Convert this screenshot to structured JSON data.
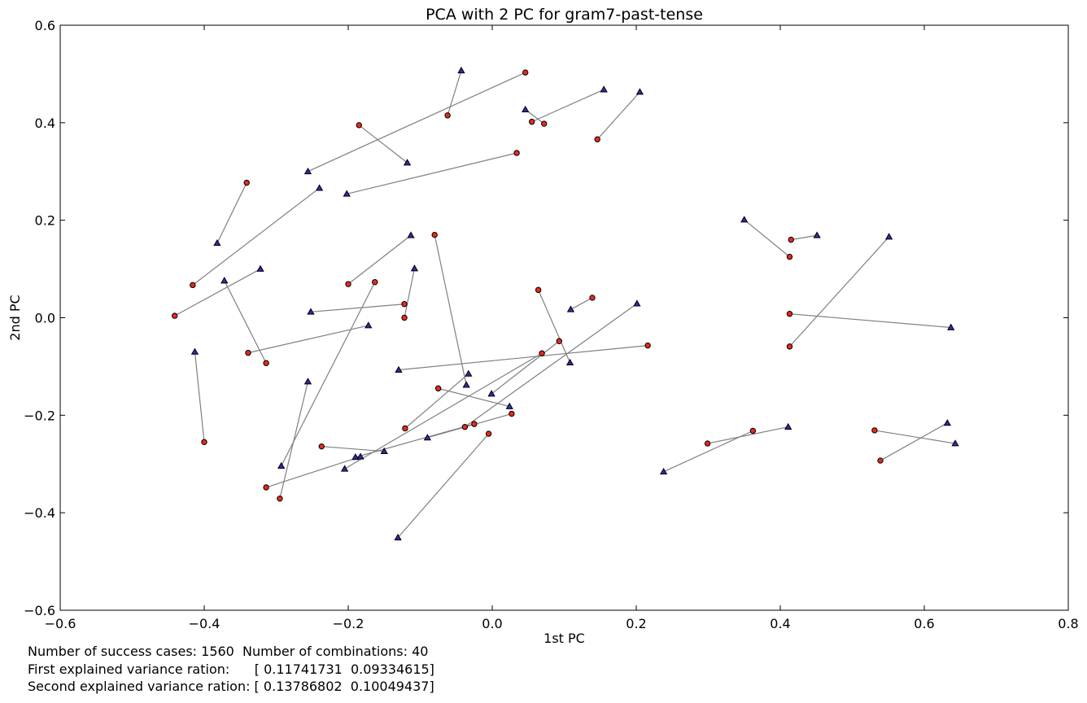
{
  "chart_data": {
    "type": "scatter",
    "title": "PCA with 2 PC for gram7-past-tense",
    "xlabel": "1st PC",
    "ylabel": "2nd PC",
    "xlim": [
      -0.6,
      0.8
    ],
    "ylim": [
      -0.6,
      0.6
    ],
    "xticks": [
      -0.6,
      -0.4,
      -0.2,
      0.0,
      0.2,
      0.4,
      0.6,
      0.8
    ],
    "yticks": [
      -0.6,
      -0.4,
      -0.2,
      0.0,
      0.2,
      0.4,
      0.6
    ],
    "xtick_labels": [
      "−0.6",
      "−0.4",
      "−0.2",
      "0.0",
      "0.2",
      "0.4",
      "0.6",
      "0.8"
    ],
    "ytick_labels": [
      "−0.6",
      "−0.4",
      "−0.2",
      "0.0",
      "0.2",
      "0.4",
      "0.6"
    ],
    "grid": false,
    "colors": {
      "circle": "#e8291c",
      "triangle": "#2d2bb0",
      "line": "#808080"
    },
    "pairs": [
      {
        "circle": [
          0.046,
          0.503
        ],
        "triangle": [
          -0.256,
          0.3
        ]
      },
      {
        "circle": [
          -0.062,
          0.415
        ],
        "triangle": [
          -0.043,
          0.507
        ]
      },
      {
        "circle": [
          -0.185,
          0.395
        ],
        "triangle": [
          -0.118,
          0.318
        ]
      },
      {
        "circle": [
          0.055,
          0.402
        ],
        "triangle": [
          0.155,
          0.468
        ]
      },
      {
        "circle": [
          0.072,
          0.398
        ],
        "triangle": [
          0.046,
          0.427
        ]
      },
      {
        "circle": [
          0.146,
          0.366
        ],
        "triangle": [
          0.205,
          0.463
        ]
      },
      {
        "circle": [
          0.034,
          0.338
        ],
        "triangle": [
          -0.202,
          0.254
        ]
      },
      {
        "circle": [
          -0.341,
          0.277
        ],
        "triangle": [
          -0.382,
          0.153
        ]
      },
      {
        "circle": [
          -0.416,
          0.067
        ],
        "triangle": [
          -0.24,
          0.266
        ]
      },
      {
        "circle": [
          -0.2,
          0.069
        ],
        "triangle": [
          -0.113,
          0.169
        ]
      },
      {
        "circle": [
          -0.08,
          0.17
        ],
        "triangle": [
          -0.036,
          -0.138
        ]
      },
      {
        "circle": [
          -0.441,
          0.004
        ],
        "triangle": [
          -0.322,
          0.1
        ]
      },
      {
        "circle": [
          -0.314,
          -0.093
        ],
        "triangle": [
          -0.372,
          0.076
        ]
      },
      {
        "circle": [
          -0.163,
          0.073
        ],
        "triangle": [
          -0.293,
          -0.304
        ]
      },
      {
        "circle": [
          -0.122,
          0.028
        ],
        "triangle": [
          -0.252,
          0.012
        ]
      },
      {
        "circle": [
          -0.122,
          0.0
        ],
        "triangle": [
          -0.108,
          0.101
        ]
      },
      {
        "circle": [
          -0.339,
          -0.072
        ],
        "triangle": [
          -0.172,
          -0.016
        ]
      },
      {
        "circle": [
          0.064,
          0.057
        ],
        "triangle": [
          0.108,
          -0.092
        ]
      },
      {
        "circle": [
          0.139,
          0.041
        ],
        "triangle": [
          0.109,
          0.017
        ]
      },
      {
        "circle": [
          0.216,
          -0.057
        ],
        "triangle": [
          -0.13,
          -0.107
        ]
      },
      {
        "circle": [
          0.093,
          -0.048
        ],
        "triangle": [
          -0.001,
          -0.156
        ]
      },
      {
        "circle": [
          0.069,
          -0.073
        ],
        "triangle": [
          -0.205,
          -0.31
        ]
      },
      {
        "circle": [
          -0.4,
          -0.255
        ],
        "triangle": [
          -0.413,
          -0.07
        ]
      },
      {
        "circle": [
          -0.295,
          -0.371
        ],
        "triangle": [
          -0.256,
          -0.131
        ]
      },
      {
        "circle": [
          -0.075,
          -0.145
        ],
        "triangle": [
          0.024,
          -0.182
        ]
      },
      {
        "circle": [
          -0.121,
          -0.227
        ],
        "triangle": [
          -0.033,
          -0.115
        ]
      },
      {
        "circle": [
          -0.038,
          -0.224
        ],
        "triangle": [
          0.201,
          0.029
        ]
      },
      {
        "circle": [
          -0.025,
          -0.218
        ],
        "triangle": [
          -0.19,
          -0.286
        ]
      },
      {
        "circle": [
          0.027,
          -0.197
        ],
        "triangle": [
          -0.09,
          -0.246
        ]
      },
      {
        "circle": [
          -0.237,
          -0.264
        ],
        "triangle": [
          -0.15,
          -0.274
        ]
      },
      {
        "circle": [
          -0.314,
          -0.348
        ],
        "triangle": [
          -0.183,
          -0.285
        ]
      },
      {
        "circle": [
          -0.005,
          -0.238
        ],
        "triangle": [
          -0.131,
          -0.451
        ]
      },
      {
        "circle": [
          0.413,
          0.125
        ],
        "triangle": [
          0.35,
          0.201
        ]
      },
      {
        "circle": [
          0.415,
          0.16
        ],
        "triangle": [
          0.451,
          0.169
        ]
      },
      {
        "circle": [
          0.413,
          -0.059
        ],
        "triangle": [
          0.551,
          0.166
        ]
      },
      {
        "circle": [
          0.413,
          0.008
        ],
        "triangle": [
          0.637,
          -0.02
        ]
      },
      {
        "circle": [
          0.362,
          -0.232
        ],
        "triangle": [
          0.238,
          -0.316
        ]
      },
      {
        "circle": [
          0.299,
          -0.258
        ],
        "triangle": [
          0.411,
          -0.224
        ]
      },
      {
        "circle": [
          0.531,
          -0.231
        ],
        "triangle": [
          0.643,
          -0.258
        ]
      },
      {
        "circle": [
          0.539,
          -0.293
        ],
        "triangle": [
          0.632,
          -0.216
        ]
      }
    ]
  },
  "footer": {
    "line1": "Number of success cases: 1560  Number of combinations: 40",
    "line2": "First explained variance ration:      [ 0.11741731  0.09334615]",
    "line3": "Second explained variance ration: [ 0.13786802  0.10049437]"
  }
}
